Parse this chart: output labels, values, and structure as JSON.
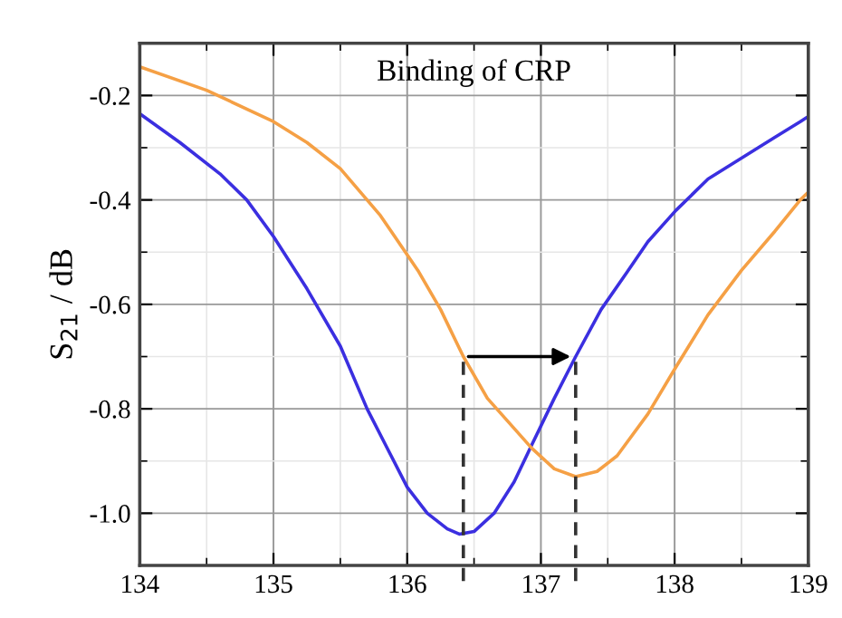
{
  "chart_data": {
    "type": "line",
    "title": "Binding of CRP",
    "ylabel": "S$_{21}$ / dB",
    "xlim": [
      134,
      139
    ],
    "xticks": [
      134,
      135,
      136,
      137,
      138,
      139
    ],
    "ylim": [
      -1.1,
      -0.1
    ],
    "yticks": [
      -0.2,
      -0.4,
      -0.6,
      -0.8,
      {
        "value": -1.0,
        "label": "-1.0"
      }
    ],
    "grid": true,
    "series": [
      {
        "color": "#3b2fe0",
        "x": [
          134,
          134.3,
          134.6,
          134.8,
          135,
          135.25,
          135.5,
          135.7,
          135.84,
          136,
          136.15,
          136.3,
          136.39,
          136.5,
          136.65,
          136.8,
          136.93,
          137.1,
          137.26,
          137.45,
          137.64,
          137.8,
          138.01,
          138.25,
          138.5,
          138.75,
          138.94,
          139
        ],
        "values": [
          -0.235,
          -0.29,
          -0.35,
          -0.4,
          -0.47,
          -0.57,
          -0.68,
          -0.8,
          -0.87,
          -0.95,
          -1.0,
          -1.03,
          -1.04,
          -1.035,
          -1.0,
          -0.94,
          -0.87,
          -0.78,
          -0.7,
          -0.61,
          -0.54,
          -0.48,
          -0.42,
          -0.36,
          -0.32,
          -0.28,
          -0.25,
          -0.24
        ]
      },
      {
        "color": "#f5a045",
        "x": [
          134,
          134.5,
          135,
          135.25,
          135.5,
          135.8,
          136.08,
          136.25,
          136.42,
          136.6,
          136.93,
          137.1,
          137.26,
          137.42,
          137.57,
          137.8,
          138.01,
          138.25,
          138.5,
          138.75,
          138.94,
          139
        ],
        "values": [
          -0.145,
          -0.19,
          -0.25,
          -0.29,
          -0.34,
          -0.43,
          -0.535,
          -0.61,
          -0.7,
          -0.78,
          -0.875,
          -0.915,
          -0.93,
          -0.92,
          -0.89,
          -0.81,
          -0.72,
          -0.62,
          -0.535,
          -0.46,
          -0.4,
          -0.385
        ]
      }
    ],
    "ref_lines": [
      {
        "axis": "x",
        "value": 136.42,
        "color": "#333333",
        "line_style": "dashed"
      },
      {
        "axis": "x",
        "value": 137.26,
        "color": "#333333",
        "line_style": "dashed"
      }
    ]
  }
}
